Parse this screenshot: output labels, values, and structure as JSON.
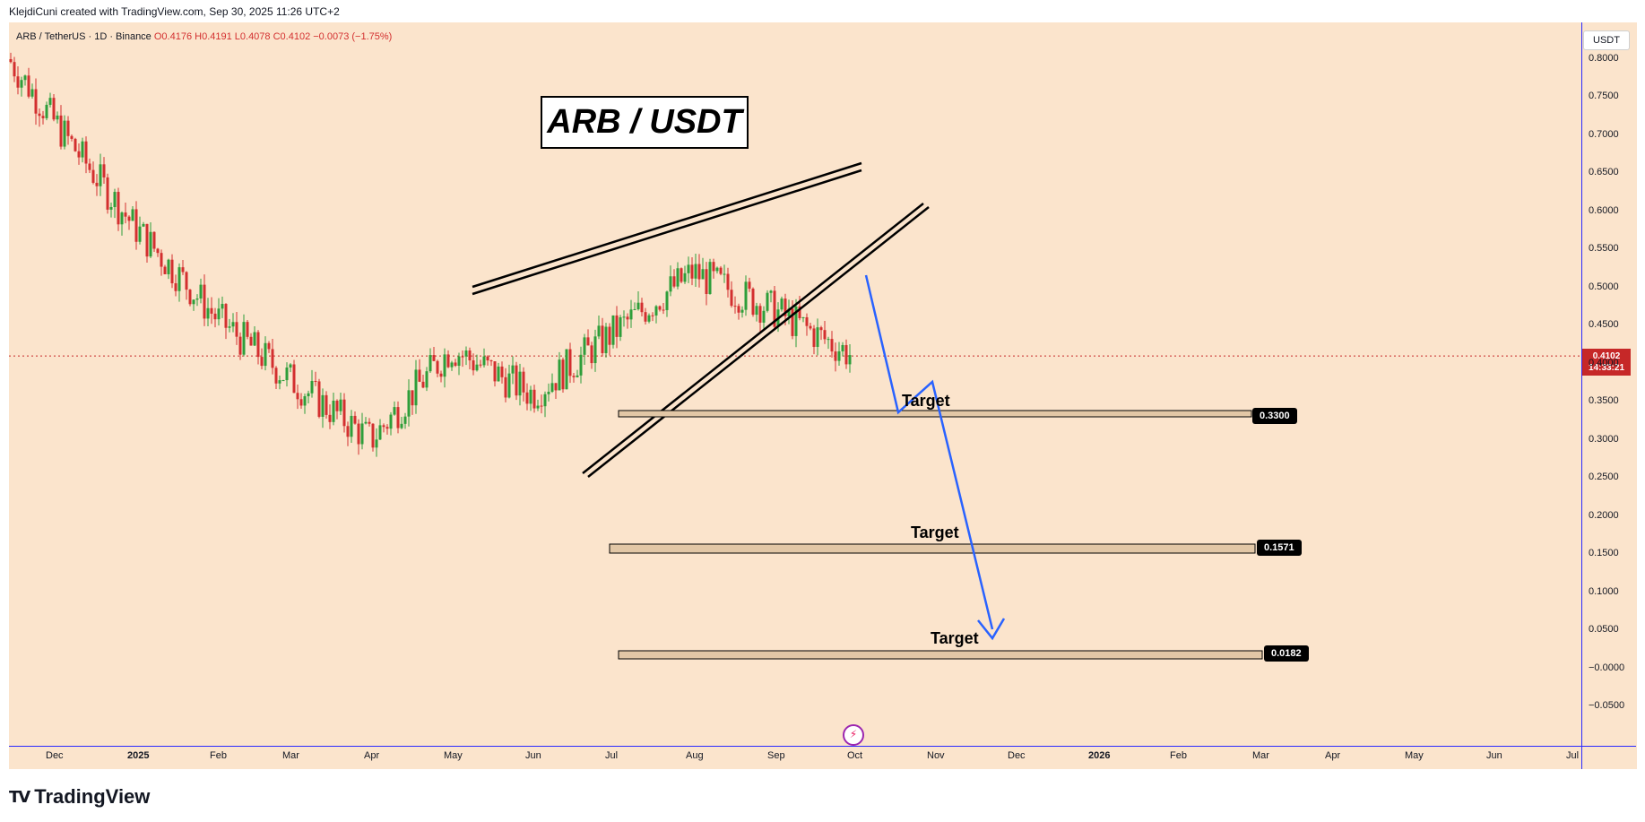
{
  "header": {
    "text": "KlejdiCuni created with TradingView.com, Sep 30, 2025 11:26 UTC+2"
  },
  "symbol": {
    "main": "ARB / TetherUS · 1D · Binance",
    "ohlc": "O0.4176  H0.4191  L0.4078  C0.4102  −0.0073 (−1.75%)"
  },
  "chart_data": {
    "type": "candlestick",
    "title": "ARB / USDT",
    "ylim": [
      -0.08,
      0.83
    ],
    "y_ticks": [
      "0.8000",
      "0.7500",
      "0.7000",
      "0.6500",
      "0.6000",
      "0.5500",
      "0.5000",
      "0.4500",
      "0.4000",
      "0.3500",
      "0.3000",
      "0.2500",
      "0.2000",
      "0.1500",
      "0.1000",
      "0.0500",
      "−0.0000",
      "−0.0500"
    ],
    "x_ticks": [
      "Dec",
      "2025",
      "Feb",
      "Mar",
      "Apr",
      "May",
      "Jun",
      "Jul",
      "Aug",
      "Sep",
      "Oct",
      "Nov",
      "Dec",
      "2026",
      "Feb",
      "Mar",
      "Apr",
      "May",
      "Jun",
      "Jul"
    ],
    "last_price": "0.4102",
    "countdown": "14:33:21",
    "currency": "USDT",
    "price_path": [
      {
        "month": "2024-11",
        "close": 0.8
      },
      {
        "month": "2024-12",
        "close": 0.72
      },
      {
        "month": "2025-01",
        "close": 0.58
      },
      {
        "month": "2025-02",
        "close": 0.46
      },
      {
        "month": "2025-03",
        "close": 0.38
      },
      {
        "month": "2025-04",
        "close": 0.3
      },
      {
        "month": "2025-05",
        "close": 0.42
      },
      {
        "month": "2025-06",
        "close": 0.36
      },
      {
        "month": "2025-07",
        "close": 0.44
      },
      {
        "month": "2025-08",
        "close": 0.52
      },
      {
        "month": "2025-09",
        "close": 0.47
      },
      {
        "month": "2025-09-30",
        "close": 0.4102
      }
    ],
    "annotations": [
      {
        "type": "rising_wedge",
        "label": ""
      },
      {
        "type": "projection_arrow",
        "color": "#2962ff"
      }
    ],
    "targets": [
      {
        "label": "Target",
        "value": "0.3300"
      },
      {
        "label": "Target",
        "value": "0.1571"
      },
      {
        "label": "Target",
        "value": "0.0182"
      }
    ]
  },
  "branding": {
    "name": "TradingView"
  },
  "colors": {
    "background": "#fbe4cc",
    "up": "#2e9e3a",
    "down": "#d32f2f",
    "arrow": "#2962ff",
    "last_price": "#c62828"
  }
}
